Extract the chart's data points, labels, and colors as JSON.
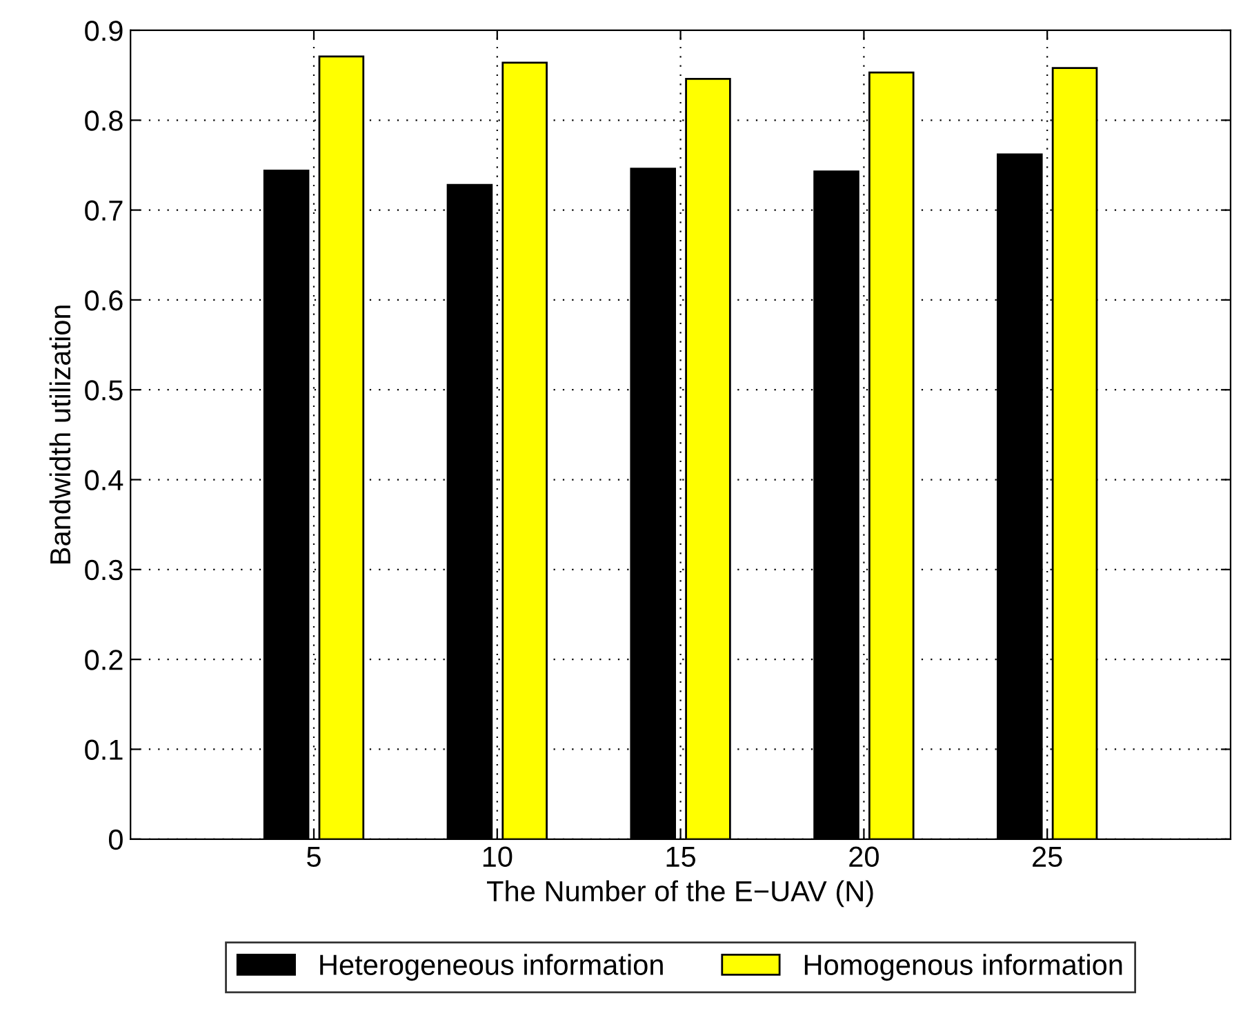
{
  "chart_data": {
    "type": "bar",
    "xlabel": "The Number of the E−UAV (N)",
    "ylabel": "Bandwidth utilization",
    "x": [
      5,
      10,
      15,
      20,
      25
    ],
    "series": [
      {
        "name": "Heterogeneous information",
        "color": "#000000",
        "values": [
          0.744,
          0.728,
          0.746,
          0.743,
          0.762
        ]
      },
      {
        "name": "Homogenous information",
        "color": "#ffff00",
        "values": [
          0.871,
          0.864,
          0.846,
          0.853,
          0.858
        ]
      }
    ],
    "xlim": [
      0,
      30
    ],
    "xticks": [
      5,
      10,
      15,
      20,
      25
    ],
    "ylim": [
      0,
      0.9
    ],
    "yticks": [
      0,
      0.1,
      0.2,
      0.3,
      0.4,
      0.5,
      0.6,
      0.7,
      0.8,
      0.9
    ],
    "grid": true,
    "legend": "bottom"
  }
}
